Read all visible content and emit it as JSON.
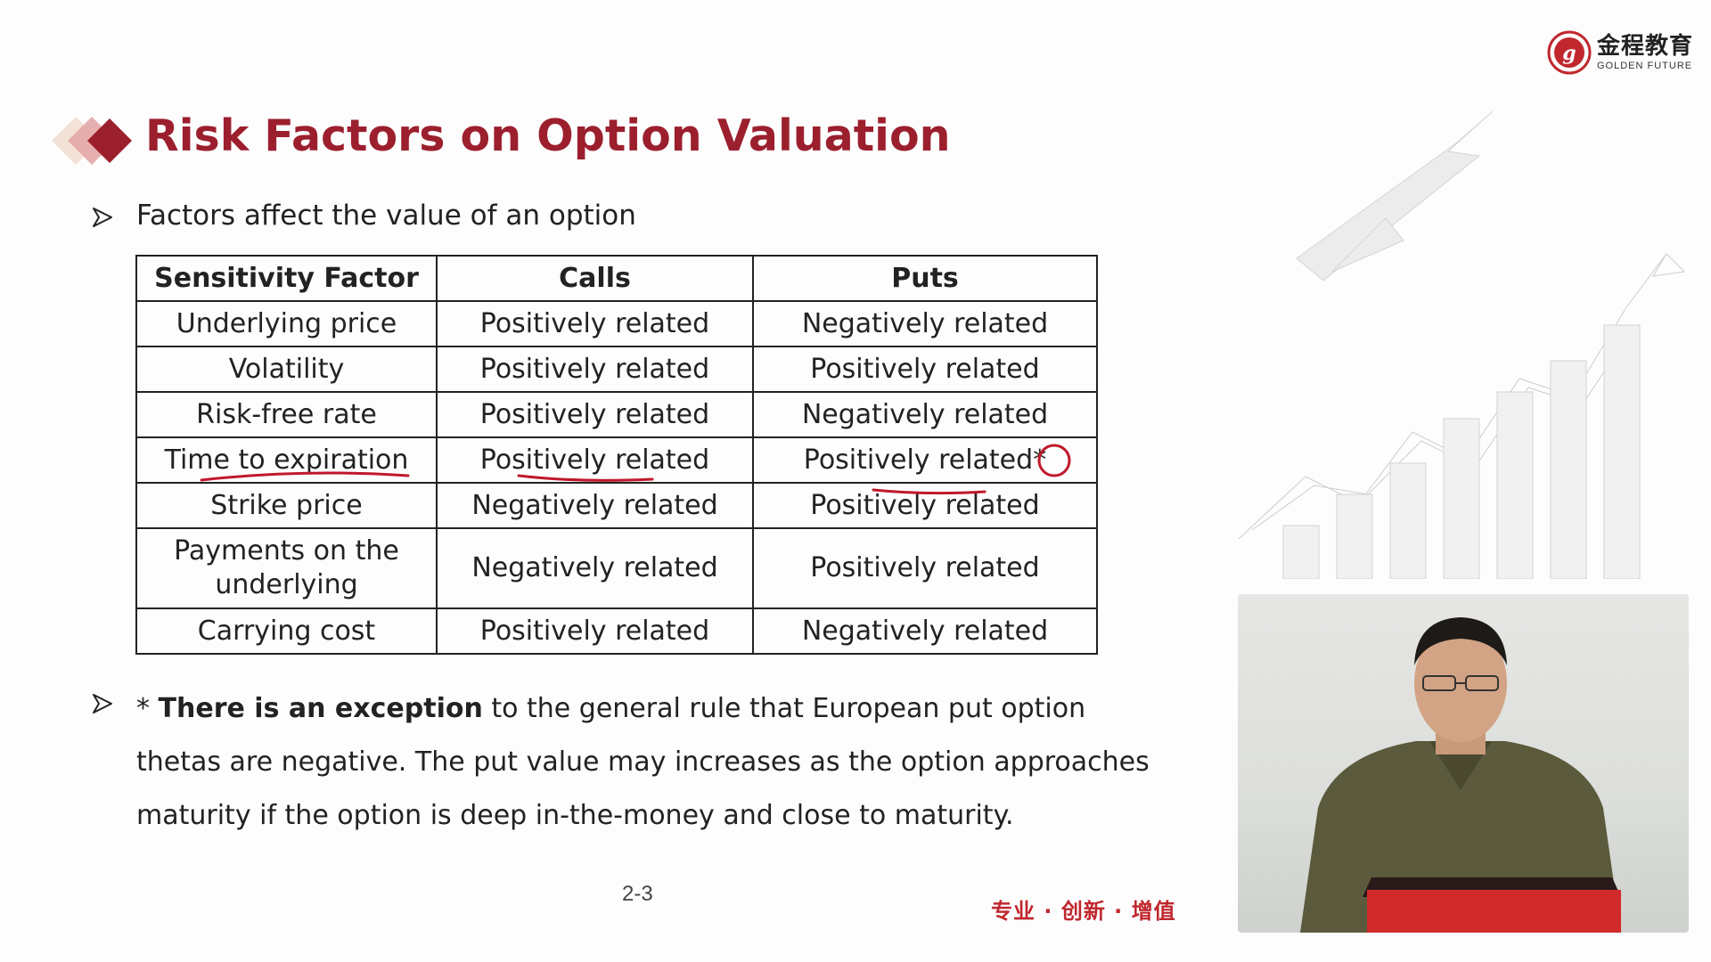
{
  "logo": {
    "cn": "金程教育",
    "en": "GOLDEN FUTURE",
    "brand_color": "#c0282e"
  },
  "title": "Risk Factors on Option Valuation",
  "bullet1": "Factors affect the value of an option",
  "table": {
    "headers": [
      "Sensitivity Factor",
      "Calls",
      "Puts"
    ],
    "rows": [
      {
        "factor": "Underlying price",
        "calls": "Positively related",
        "puts": "Negatively related"
      },
      {
        "factor": "Volatility",
        "calls": "Positively related",
        "puts": "Positively related"
      },
      {
        "factor": "Risk-free rate",
        "calls": "Positively related",
        "puts": "Negatively related"
      },
      {
        "factor": "Time to expiration",
        "calls": "Positively related",
        "puts": "Positively related"
      },
      {
        "factor": "Strike price",
        "calls": "Negatively related",
        "puts": "Positively related"
      },
      {
        "factor_line1": "Payments on the",
        "factor_line2": "underlying",
        "calls": "Negatively related",
        "puts": "Positively related"
      },
      {
        "factor": "Carrying cost",
        "calls": "Positively related",
        "puts": "Negatively related"
      }
    ],
    "asterisk": "*"
  },
  "note": {
    "prefix": "* ",
    "bold": "There is an exception",
    "rest": " to the general rule that European put option thetas are negative. The put value may increases as the option approaches maturity if the option is deep in-the-money and close to maturity."
  },
  "page_number": "2-3",
  "slogan": "专业 · 创新 · 增值",
  "colors": {
    "title": "#9c1f2e",
    "annotation": "#c0182a"
  }
}
